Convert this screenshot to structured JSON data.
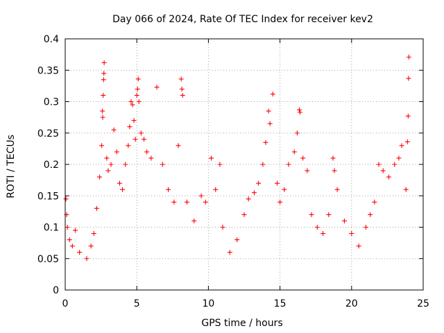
{
  "chart_data": {
    "type": "scatter",
    "title": "Day 066 of 2024, Rate Of TEC Index for receiver kev2",
    "xlabel": "GPS time / hours",
    "ylabel": "ROTI / TECUs",
    "xlim": [
      0,
      25
    ],
    "ylim": [
      0,
      0.4
    ],
    "xticks": [
      "0",
      "5",
      "10",
      "15",
      "20",
      "25"
    ],
    "yticks": [
      "0",
      "0.05",
      "0.1",
      "0.15",
      "0.2",
      "0.25",
      "0.3",
      "0.35",
      "0.4"
    ],
    "grid": true,
    "marker": "+",
    "color": "#ff0000",
    "series": [
      {
        "name": "ROTI kev2",
        "points": [
          [
            0.05,
            0.145
          ],
          [
            0.1,
            0.12
          ],
          [
            0.15,
            0.1
          ],
          [
            0.3,
            0.08
          ],
          [
            0.5,
            0.07
          ],
          [
            0.7,
            0.095
          ],
          [
            1.0,
            0.06
          ],
          [
            1.5,
            0.05
          ],
          [
            1.8,
            0.07
          ],
          [
            2.0,
            0.09
          ],
          [
            2.2,
            0.13
          ],
          [
            2.4,
            0.18
          ],
          [
            2.55,
            0.23
          ],
          [
            2.6,
            0.285
          ],
          [
            2.62,
            0.275
          ],
          [
            2.65,
            0.31
          ],
          [
            2.68,
            0.335
          ],
          [
            2.7,
            0.345
          ],
          [
            2.72,
            0.362
          ],
          [
            2.9,
            0.21
          ],
          [
            3.0,
            0.19
          ],
          [
            3.2,
            0.2
          ],
          [
            3.4,
            0.255
          ],
          [
            3.6,
            0.22
          ],
          [
            3.8,
            0.17
          ],
          [
            4.0,
            0.16
          ],
          [
            4.2,
            0.2
          ],
          [
            4.4,
            0.23
          ],
          [
            4.5,
            0.26
          ],
          [
            4.6,
            0.3
          ],
          [
            4.7,
            0.295
          ],
          [
            4.8,
            0.27
          ],
          [
            4.9,
            0.24
          ],
          [
            5.0,
            0.31
          ],
          [
            5.05,
            0.32
          ],
          [
            5.1,
            0.336
          ],
          [
            5.15,
            0.3
          ],
          [
            5.3,
            0.25
          ],
          [
            5.5,
            0.24
          ],
          [
            5.7,
            0.22
          ],
          [
            6.0,
            0.21
          ],
          [
            6.4,
            0.323
          ],
          [
            6.8,
            0.2
          ],
          [
            7.2,
            0.16
          ],
          [
            7.6,
            0.14
          ],
          [
            7.9,
            0.23
          ],
          [
            8.1,
            0.336
          ],
          [
            8.15,
            0.32
          ],
          [
            8.2,
            0.31
          ],
          [
            8.5,
            0.14
          ],
          [
            9.0,
            0.11
          ],
          [
            9.5,
            0.15
          ],
          [
            9.8,
            0.14
          ],
          [
            10.2,
            0.21
          ],
          [
            10.5,
            0.16
          ],
          [
            10.8,
            0.2
          ],
          [
            11.0,
            0.1
          ],
          [
            11.5,
            0.06
          ],
          [
            12.0,
            0.08
          ],
          [
            12.5,
            0.12
          ],
          [
            12.8,
            0.145
          ],
          [
            13.2,
            0.155
          ],
          [
            13.5,
            0.17
          ],
          [
            13.8,
            0.2
          ],
          [
            14.0,
            0.235
          ],
          [
            14.2,
            0.285
          ],
          [
            14.3,
            0.265
          ],
          [
            14.5,
            0.312
          ],
          [
            14.8,
            0.17
          ],
          [
            15.0,
            0.14
          ],
          [
            15.3,
            0.16
          ],
          [
            15.6,
            0.2
          ],
          [
            16.0,
            0.22
          ],
          [
            16.2,
            0.25
          ],
          [
            16.35,
            0.287
          ],
          [
            16.4,
            0.283
          ],
          [
            16.6,
            0.21
          ],
          [
            16.9,
            0.19
          ],
          [
            17.2,
            0.12
          ],
          [
            17.6,
            0.1
          ],
          [
            18.0,
            0.09
          ],
          [
            18.4,
            0.12
          ],
          [
            18.7,
            0.21
          ],
          [
            18.8,
            0.19
          ],
          [
            19.0,
            0.16
          ],
          [
            19.5,
            0.11
          ],
          [
            20.0,
            0.09
          ],
          [
            20.5,
            0.07
          ],
          [
            21.0,
            0.1
          ],
          [
            21.3,
            0.12
          ],
          [
            21.6,
            0.14
          ],
          [
            21.9,
            0.2
          ],
          [
            22.2,
            0.19
          ],
          [
            22.6,
            0.18
          ],
          [
            23.0,
            0.2
          ],
          [
            23.3,
            0.21
          ],
          [
            23.5,
            0.23
          ],
          [
            23.8,
            0.16
          ],
          [
            23.9,
            0.236
          ],
          [
            23.95,
            0.277
          ],
          [
            23.98,
            0.337
          ],
          [
            24.0,
            0.371
          ]
        ]
      }
    ]
  }
}
